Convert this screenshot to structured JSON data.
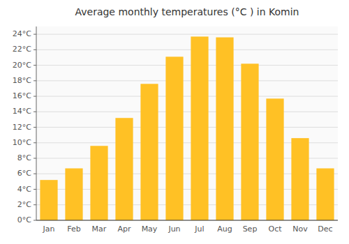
{
  "chart_data": {
    "type": "bar",
    "title": "Average monthly temperatures (°C ) in Komin",
    "categories": [
      "Jan",
      "Feb",
      "Mar",
      "Apr",
      "May",
      "Jun",
      "Jul",
      "Aug",
      "Sep",
      "Oct",
      "Nov",
      "Dec"
    ],
    "values": [
      5.2,
      6.7,
      9.6,
      13.2,
      17.6,
      21.1,
      23.7,
      23.6,
      20.2,
      15.7,
      10.6,
      6.7
    ],
    "color": "#FFC125",
    "ylim": [
      0,
      25
    ],
    "yticks": [
      {
        "value": 0,
        "label": "0°C"
      },
      {
        "value": 2,
        "label": "2°C"
      },
      {
        "value": 4,
        "label": "4°C"
      },
      {
        "value": 6,
        "label": "6°C"
      },
      {
        "value": 8,
        "label": "8°C"
      },
      {
        "value": 10,
        "label": "10°C"
      },
      {
        "value": 12,
        "label": "12°C"
      },
      {
        "value": 14,
        "label": "14°C"
      },
      {
        "value": 16,
        "label": "16°C"
      },
      {
        "value": 18,
        "label": "18°C"
      },
      {
        "value": 20,
        "label": "20°C"
      },
      {
        "value": 22,
        "label": "22°C"
      },
      {
        "value": 24,
        "label": "24°C"
      }
    ],
    "grid": true
  }
}
